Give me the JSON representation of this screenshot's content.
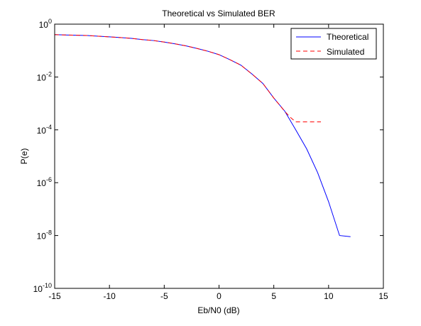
{
  "chart_data": {
    "type": "line",
    "title": "Theoretical vs Simulated BER",
    "xlabel": "Eb/N0 (dB)",
    "ylabel": "P(e)",
    "xlim": [
      -15,
      15
    ],
    "ylim": [
      1e-10,
      1
    ],
    "yscale": "log",
    "grid": false,
    "legend_position": "top-right",
    "x_ticks": [
      -15,
      -10,
      -5,
      0,
      5,
      10,
      15
    ],
    "x_tick_labels": [
      "-15",
      "-10",
      "-5",
      "0",
      "5",
      "10",
      "15"
    ],
    "y_ticks": [
      0,
      -2,
      -4,
      -6,
      -8,
      -10
    ],
    "y_tick_bases": [
      "10",
      "10",
      "10",
      "10",
      "10",
      "10"
    ],
    "y_tick_exponents": [
      "0",
      "-2",
      "-4",
      "-6",
      "-8",
      "-10"
    ],
    "series": [
      {
        "name": "Theoretical",
        "color": "#0000ff",
        "style": "solid",
        "x": [
          -15,
          -14,
          -13,
          -12,
          -11,
          -10,
          -9,
          -8,
          -7,
          -6,
          -5,
          -4,
          -3,
          -2,
          -1,
          0,
          1,
          2,
          3,
          4,
          5,
          6,
          7,
          8,
          9,
          10,
          11,
          12
        ],
        "y": [
          0.4,
          0.39,
          0.38,
          0.37,
          0.35,
          0.33,
          0.31,
          0.29,
          0.26,
          0.24,
          0.21,
          0.18,
          0.15,
          0.12,
          0.094,
          0.07,
          0.045,
          0.028,
          0.013,
          0.0057,
          0.0016,
          0.00051,
          0.0001,
          1.9e-05,
          2.4e-06,
          1.9e-07,
          1e-08,
          9e-09
        ]
      },
      {
        "name": "Simulated",
        "color": "#ff0000",
        "style": "dashed",
        "x": [
          -15,
          -14,
          -13,
          -12,
          -11,
          -10,
          -9,
          -8,
          -7,
          -6,
          -5,
          -4,
          -3,
          -2,
          -1,
          0,
          1,
          2,
          3,
          4,
          5,
          6,
          6.5,
          7,
          8,
          9,
          9.3
        ],
        "y": [
          0.4,
          0.39,
          0.38,
          0.37,
          0.35,
          0.33,
          0.31,
          0.29,
          0.26,
          0.24,
          0.21,
          0.18,
          0.15,
          0.12,
          0.094,
          0.07,
          0.045,
          0.028,
          0.013,
          0.0057,
          0.0016,
          0.0005,
          0.0003,
          0.0002,
          0.0002,
          0.0002,
          0.0002
        ]
      }
    ]
  }
}
